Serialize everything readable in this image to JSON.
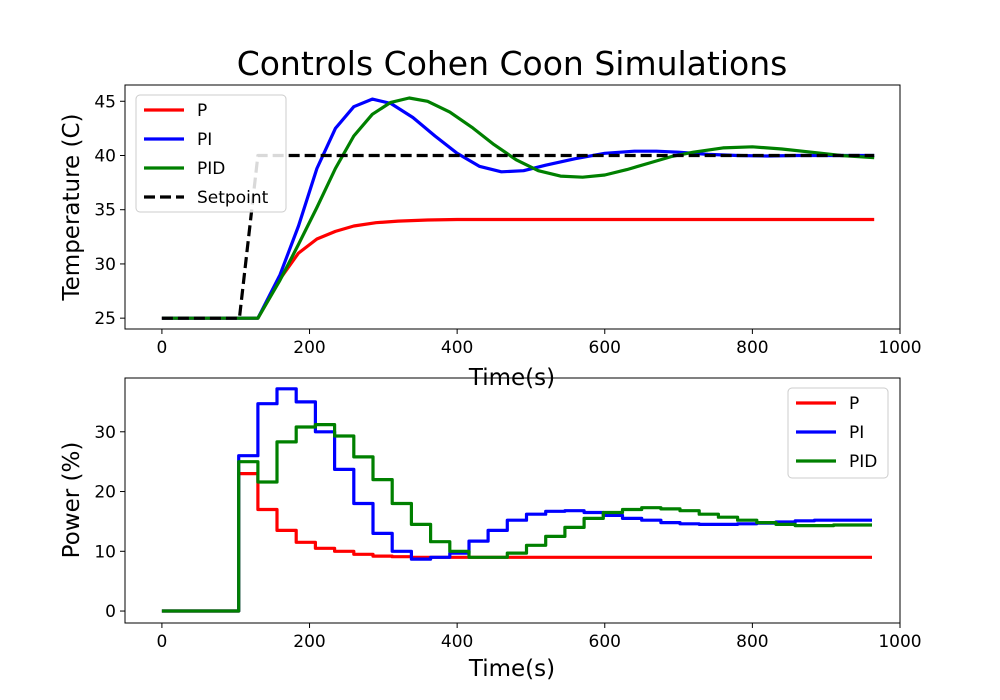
{
  "chart_data": [
    {
      "type": "line",
      "title": "Controls Cohen Coon Simulations",
      "xlabel": "Time(s)",
      "ylabel": "Temperature (C)",
      "xlim": [
        -50,
        1000
      ],
      "ylim": [
        24,
        46.5
      ],
      "xticks": [
        0,
        200,
        400,
        600,
        800,
        1000
      ],
      "yticks": [
        25,
        30,
        35,
        40,
        45
      ],
      "grid": false,
      "legend_position": "upper-left",
      "series": [
        {
          "name": "P",
          "color": "#ff0000",
          "style": "solid",
          "x": [
            0,
            130,
            160,
            185,
            210,
            235,
            260,
            290,
            320,
            360,
            400,
            450,
            500,
            600,
            700,
            800,
            965
          ],
          "y": [
            25,
            25,
            28.6,
            31.0,
            32.3,
            33.0,
            33.5,
            33.8,
            33.95,
            34.05,
            34.1,
            34.1,
            34.1,
            34.1,
            34.1,
            34.1,
            34.1
          ]
        },
        {
          "name": "PI",
          "color": "#0000ff",
          "style": "solid",
          "x": [
            0,
            130,
            160,
            185,
            210,
            235,
            260,
            285,
            310,
            340,
            370,
            400,
            430,
            460,
            490,
            520,
            560,
            600,
            640,
            670,
            700,
            740,
            780,
            820,
            860,
            900,
            965
          ],
          "y": [
            25,
            25,
            29.0,
            33.5,
            38.8,
            42.5,
            44.5,
            45.2,
            44.8,
            43.5,
            41.8,
            40.2,
            39.0,
            38.5,
            38.6,
            39.1,
            39.7,
            40.2,
            40.4,
            40.4,
            40.3,
            40.1,
            40.0,
            39.95,
            40.0,
            40.0,
            40.0
          ]
        },
        {
          "name": "PID",
          "color": "#008000",
          "style": "solid",
          "x": [
            0,
            130,
            160,
            185,
            210,
            235,
            260,
            285,
            310,
            335,
            360,
            390,
            420,
            450,
            480,
            510,
            540,
            570,
            600,
            630,
            660,
            690,
            720,
            760,
            800,
            840,
            880,
            920,
            965
          ],
          "y": [
            25,
            25,
            28.5,
            31.8,
            35.2,
            38.8,
            41.8,
            43.8,
            44.9,
            45.3,
            45.0,
            44.0,
            42.6,
            41.0,
            39.6,
            38.6,
            38.1,
            38.0,
            38.2,
            38.7,
            39.3,
            39.9,
            40.3,
            40.7,
            40.8,
            40.6,
            40.3,
            40.0,
            39.8
          ]
        },
        {
          "name": "Setpoint",
          "color": "#000000",
          "style": "dashed",
          "x": [
            0,
            105,
            130,
            965
          ],
          "y": [
            25,
            25,
            40,
            40
          ]
        }
      ]
    },
    {
      "type": "line",
      "title": "",
      "xlabel": "Time(s)",
      "ylabel": "Power (%)",
      "xlim": [
        -50,
        1000
      ],
      "ylim": [
        -2,
        39
      ],
      "xticks": [
        0,
        200,
        400,
        600,
        800,
        1000
      ],
      "yticks": [
        0,
        10,
        20,
        30
      ],
      "grid": false,
      "legend_position": "upper-right",
      "step_interval": 26,
      "series": [
        {
          "name": "P",
          "color": "#ff0000",
          "step": true,
          "values": [
            0,
            0,
            0,
            0,
            23,
            17,
            13.5,
            11.5,
            10.5,
            10,
            9.5,
            9.2,
            9.1,
            9,
            9,
            9,
            9,
            9,
            9,
            9,
            9,
            9,
            9,
            9,
            9,
            9,
            9,
            9,
            9,
            9,
            9,
            9,
            9,
            9,
            9,
            9,
            9
          ]
        },
        {
          "name": "PI",
          "color": "#0000ff",
          "step": true,
          "values": [
            0,
            0,
            0,
            0,
            26,
            34.7,
            37.2,
            35,
            30,
            23.7,
            18,
            13,
            10,
            8.7,
            9,
            9.7,
            11.7,
            13.5,
            15.2,
            16.2,
            16.7,
            16.8,
            16.5,
            16,
            15.5,
            15.2,
            14.8,
            14.6,
            14.5,
            14.5,
            14.6,
            14.7,
            14.9,
            15.1,
            15.2,
            15.2,
            15.2
          ]
        },
        {
          "name": "PID",
          "color": "#008000",
          "step": true,
          "values": [
            0,
            0,
            0,
            0,
            25,
            21.6,
            28.3,
            30.8,
            31.2,
            29.3,
            25.8,
            22,
            18,
            14.5,
            11.6,
            10,
            9,
            9,
            9.7,
            11,
            12.5,
            14,
            15.5,
            16.5,
            17,
            17.3,
            17.1,
            16.8,
            16.2,
            15.7,
            15.2,
            14.8,
            14.5,
            14.3,
            14.3,
            14.4,
            14.4
          ]
        }
      ]
    }
  ]
}
